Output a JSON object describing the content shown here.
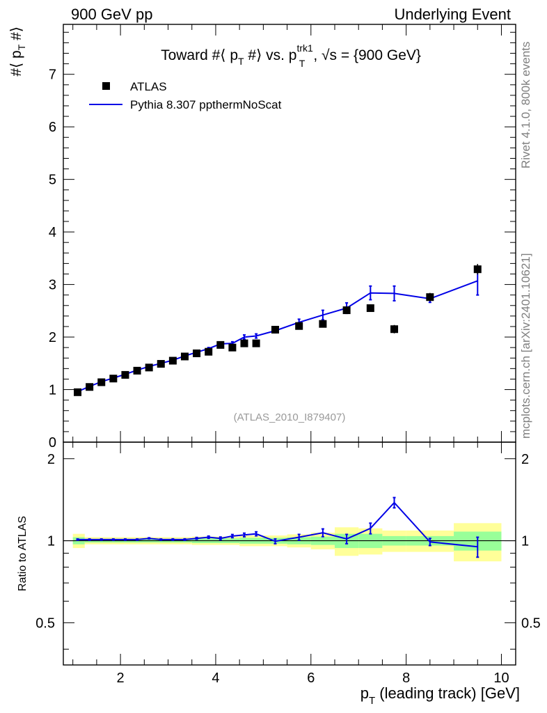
{
  "header": {
    "left": "900 GeV pp",
    "right": "Underlying Event"
  },
  "side_text": {
    "version": "Rivet 4.1.0,  800k events",
    "source": "mcplots.cern.ch [arXiv:2401.10621]"
  },
  "colors": {
    "mc_line": "#0000e6",
    "band_inner": "#99ff99",
    "band_outer": "#ffff99",
    "data_marker": "#000000",
    "watermark": "#999999"
  },
  "chart_data": [
    {
      "type": "scatter",
      "panel": "main",
      "title_parts": {
        "a": "Toward #⟨ p",
        "sub_a": "T",
        "b": " #⟩ vs. p",
        "sup_b": "trk1",
        "sub_b": "T",
        "c": ", √s = {900 GeV}"
      },
      "ylabel": {
        "a": "#⟨ p",
        "sub": "T",
        "b": " #⟩"
      },
      "xlim": [
        0.8,
        10.3
      ],
      "ylim": [
        0,
        7.95
      ],
      "ytick_labels": [
        "0",
        "1",
        "2",
        "3",
        "4",
        "5",
        "6",
        "7"
      ],
      "watermark": "(ATLAS_2010_I879407)",
      "legend": {
        "placement": "top-left",
        "data": "ATLAS",
        "mc": "Pythia 8.307 ppthermNoScat"
      },
      "series": [
        {
          "name": "ATLAS",
          "marker": "square",
          "x": [
            1.1,
            1.35,
            1.6,
            1.85,
            2.1,
            2.35,
            2.6,
            2.85,
            3.1,
            3.35,
            3.6,
            3.85,
            4.1,
            4.35,
            4.6,
            4.85,
            5.25,
            5.75,
            6.25,
            6.75,
            7.25,
            7.75,
            8.5,
            9.5
          ],
          "y": [
            0.95,
            1.05,
            1.14,
            1.21,
            1.28,
            1.36,
            1.42,
            1.49,
            1.55,
            1.63,
            1.69,
            1.72,
            1.85,
            1.8,
            1.88,
            1.88,
            2.14,
            2.21,
            2.25,
            2.51,
            2.55,
            2.15,
            2.76,
            3.29
          ],
          "yerr": [
            0.01,
            0.01,
            0.01,
            0.01,
            0.01,
            0.01,
            0.01,
            0.01,
            0.01,
            0.01,
            0.01,
            0.02,
            0.02,
            0.02,
            0.02,
            0.03,
            0.03,
            0.04,
            0.05,
            0.06,
            0.07,
            0.08,
            0.08,
            0.1
          ]
        },
        {
          "name": "Pythia 8.307 ppthermNoScat",
          "type": "line",
          "x": [
            1.1,
            1.35,
            1.6,
            1.85,
            2.1,
            2.35,
            2.6,
            2.85,
            3.1,
            3.35,
            3.6,
            3.85,
            4.1,
            4.35,
            4.6,
            4.85,
            5.25,
            5.75,
            6.25,
            6.75,
            7.25,
            7.75,
            8.5,
            9.5
          ],
          "y": [
            0.96,
            1.06,
            1.15,
            1.22,
            1.29,
            1.37,
            1.44,
            1.5,
            1.56,
            1.64,
            1.71,
            1.78,
            1.87,
            1.88,
            2.0,
            2.02,
            2.12,
            2.28,
            2.42,
            2.55,
            2.84,
            2.83,
            2.73,
            3.07
          ],
          "yerr": [
            0.01,
            0.01,
            0.01,
            0.01,
            0.01,
            0.01,
            0.01,
            0.01,
            0.01,
            0.02,
            0.02,
            0.02,
            0.03,
            0.03,
            0.04,
            0.04,
            0.04,
            0.06,
            0.09,
            0.1,
            0.13,
            0.14,
            0.07,
            0.27
          ]
        }
      ]
    },
    {
      "type": "scatter",
      "panel": "ratio",
      "ylabel": "Ratio to ATLAS",
      "xlabel": {
        "a": "p",
        "sub": "T",
        "b": " (leading track) [GeV]"
      },
      "xlim": [
        0.8,
        10.3
      ],
      "ylim": [
        0.35,
        2.3
      ],
      "xtick_labels": [
        "2",
        "4",
        "6",
        "8",
        "10"
      ],
      "ytick_labels": [
        "0.5",
        "1",
        "2"
      ],
      "bins": [
        {
          "x0": 1.0,
          "x1": 1.25,
          "inner": 0.03,
          "outer": 0.06
        },
        {
          "x0": 1.25,
          "x1": 3.5,
          "inner": 0.015,
          "outer": 0.03
        },
        {
          "x0": 3.5,
          "x1": 4.5,
          "inner": 0.02,
          "outer": 0.035
        },
        {
          "x0": 4.5,
          "x1": 5.5,
          "inner": 0.025,
          "outer": 0.045
        },
        {
          "x0": 5.5,
          "x1": 6.0,
          "inner": 0.03,
          "outer": 0.055
        },
        {
          "x0": 6.0,
          "x1": 6.5,
          "inner": 0.035,
          "outer": 0.07
        },
        {
          "x0": 6.5,
          "x1": 7.0,
          "inner": 0.06,
          "outer": 0.12
        },
        {
          "x0": 7.0,
          "x1": 7.5,
          "inner": 0.06,
          "outer": 0.11
        },
        {
          "x0": 7.5,
          "x1": 8.0,
          "inner": 0.04,
          "outer": 0.09
        },
        {
          "x0": 8.0,
          "x1": 9.0,
          "inner": 0.04,
          "outer": 0.09
        },
        {
          "x0": 9.0,
          "x1": 10.0,
          "inner": 0.08,
          "outer": 0.16
        }
      ],
      "series": [
        {
          "name": "Pythia 8.307 ppthermNoScat / ATLAS",
          "type": "line",
          "x": [
            1.1,
            1.35,
            1.6,
            1.85,
            2.1,
            2.35,
            2.6,
            2.85,
            3.1,
            3.35,
            3.6,
            3.85,
            4.1,
            4.35,
            4.6,
            4.85,
            5.25,
            5.75,
            6.25,
            6.75,
            7.25,
            7.75,
            8.5,
            9.5
          ],
          "y": [
            1.01,
            1.01,
            1.01,
            1.01,
            1.01,
            1.01,
            1.02,
            1.01,
            1.01,
            1.01,
            1.02,
            1.03,
            1.02,
            1.04,
            1.05,
            1.06,
            0.995,
            1.03,
            1.07,
            1.015,
            1.11,
            1.38,
            0.99,
            0.95
          ],
          "yerr": [
            0.005,
            0.005,
            0.005,
            0.005,
            0.005,
            0.005,
            0.005,
            0.005,
            0.006,
            0.006,
            0.008,
            0.01,
            0.012,
            0.014,
            0.016,
            0.018,
            0.02,
            0.025,
            0.035,
            0.04,
            0.05,
            0.06,
            0.03,
            0.08
          ]
        }
      ]
    }
  ]
}
